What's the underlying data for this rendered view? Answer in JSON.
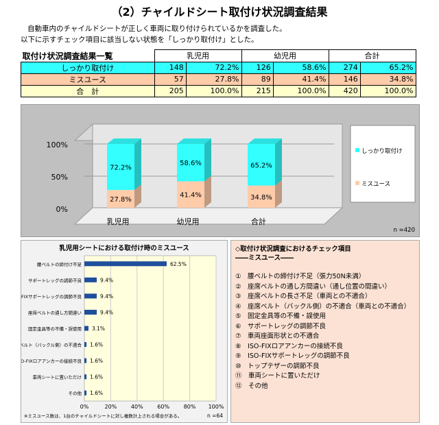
{
  "title": "（2）チャイルドシート取付け状況調査結果",
  "intro": {
    "line1": "自動車内のチャイルドシートが正しく車両に取り付けられているかを調査した。",
    "line2": "以下に示すチェック項目に該当しない状態を「しっかり取付け」とした。"
  },
  "summary_table": {
    "caption": "取付け状況調査結果一覧",
    "headers": [
      "乳児用",
      "幼児用",
      "合計"
    ],
    "rows": [
      {
        "label": "しっかり取付け",
        "cells": [
          "148",
          "72.2%",
          "126",
          "58.6%",
          "274",
          "65.2%"
        ]
      },
      {
        "label": "ミスユース",
        "cells": [
          "57",
          "27.8%",
          "89",
          "41.4%",
          "146",
          "34.8%"
        ]
      },
      {
        "label": "合　計",
        "cells": [
          "205",
          "100.0%",
          "215",
          "100.0%",
          "420",
          "100.0%"
        ]
      }
    ]
  },
  "colors": {
    "ok": "#33ffff",
    "miss": "#ffccaa",
    "bar": "#1f4e9c",
    "total": "#ffffcc"
  },
  "chart_data": [
    {
      "type": "bar",
      "stacked": true,
      "categories": [
        "乳児用",
        "幼児用",
        "合計"
      ],
      "series": [
        {
          "name": "しっかり取付け",
          "values": [
            72.2,
            58.6,
            65.2
          ],
          "labels": [
            "72.2%",
            "58.6%",
            "65.2%"
          ],
          "color": "#33ffff"
        },
        {
          "name": "ミスユース",
          "values": [
            27.8,
            41.4,
            34.8
          ],
          "labels": [
            "27.8%",
            "41.4%",
            "34.8%"
          ],
          "color": "#ffccaa"
        }
      ],
      "y_ticks": [
        "0%",
        "50%",
        "100%"
      ],
      "ylim": [
        0,
        100
      ],
      "legend_position": "right",
      "note": "n =420"
    },
    {
      "type": "bar",
      "orientation": "horizontal",
      "title": "乳児用シートにおける取付け時のミスユース",
      "categories": [
        "腰ベルトの締付け不足",
        "サポートレッグの調節不良",
        "ISO-FIXサポートレッグの調節不良",
        "座席ベルトの通し方間違い",
        "固定金具等の不備・誤使用",
        "座席ベルト（バックル側）の不適合",
        "ISO-FIXロアアンカーの接続不良",
        "車両シートに置いただけ",
        "その他"
      ],
      "values": [
        62.5,
        9.4,
        9.4,
        9.4,
        3.1,
        1.6,
        1.6,
        1.6,
        1.6
      ],
      "labels": [
        "62.5%",
        "9.4%",
        "9.4%",
        "9.4%",
        "3.1%",
        "1.6%",
        "1.6%",
        "1.6%",
        "1.6%"
      ],
      "x_ticks": [
        "0%",
        "20%",
        "40%",
        "60%",
        "80%",
        "100%"
      ],
      "xlim": [
        0,
        100
      ],
      "footnote": "※ミスユース数は、1台のチャイルドシートに対し複数計上される場合がある。",
      "note": "n =64"
    }
  ],
  "checklist": {
    "title": "◇取付け状況調査におけるチェック項目",
    "subtitle": "――ミスユース――",
    "items": [
      "①　腰ベルトの締付け不足（張力50N未満）",
      "②　座席ベルトの通し方間違い（通し位置の間違い）",
      "③　座席ベルトの長さ不足（車両との不適合）",
      "④　座席ベルト（バックル側）の不適合（車両との不適合）",
      "⑤　固定金具等の不備・誤使用",
      "⑥　サポートレッグの調節不良",
      "⑦　車両座面形状との不適合",
      "⑧　ISO-FIXロアアンカーの接続不良",
      "⑨　ISO-FIXサポートレッグの調節不良",
      "⑩　トップテザーの調節不良",
      "⑪　車両シートに置いただけ",
      "⑫　その他"
    ]
  }
}
